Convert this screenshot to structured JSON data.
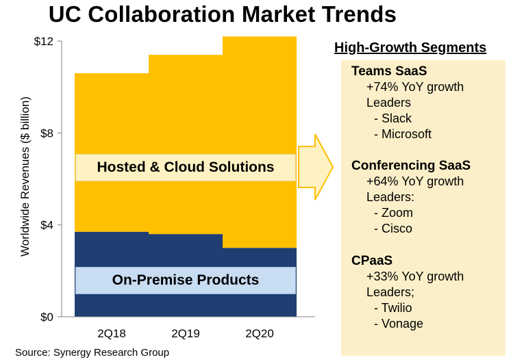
{
  "title": "UC Collaboration Market Trends",
  "source": "Source: Synergy Research Group",
  "chart_data": {
    "type": "bar",
    "stacked": true,
    "categories": [
      "2Q18",
      "2Q19",
      "2Q20"
    ],
    "series": [
      {
        "name": "On-Premise Products",
        "values": [
          3.7,
          3.6,
          3.0
        ],
        "color": "#1f3f73"
      },
      {
        "name": "Hosted & Cloud Solutions",
        "values": [
          6.9,
          7.8,
          9.2
        ],
        "color": "#ffc000"
      }
    ],
    "ylabel": "Worldwide Revenues ($ billion)",
    "ylim": [
      0,
      12
    ],
    "yticks": [
      0,
      4,
      8,
      12
    ],
    "ytick_labels": [
      "$0",
      "$4",
      "$8",
      "$12"
    ],
    "grid": false
  },
  "overlay_labels": {
    "hosted": "Hosted & Cloud Solutions",
    "onprem": "On-Premise Products"
  },
  "arrow_color": "#ffc000",
  "segments": {
    "heading": "High-Growth Segments",
    "items": [
      {
        "title": "Teams SaaS",
        "growth": "+74% YoY  growth",
        "leaders_label": "Leaders",
        "leaders": [
          "- Slack",
          "- Microsoft"
        ]
      },
      {
        "title": "Conferencing SaaS",
        "growth": "+64% YoY  growth",
        "leaders_label": "Leaders:",
        "leaders": [
          "- Zoom",
          "- Cisco"
        ]
      },
      {
        "title": "CPaaS",
        "growth": "+33% YoY  growth",
        "leaders_label": "Leaders;",
        "leaders": [
          "- Twilio",
          "- Vonage"
        ]
      }
    ]
  }
}
